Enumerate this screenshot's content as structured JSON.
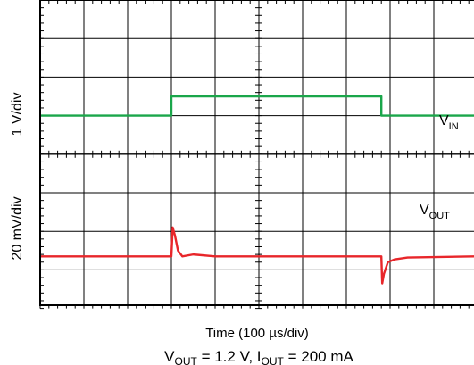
{
  "chart_data": {
    "type": "line",
    "xlabel": "Time (100 µs/div)",
    "caption": {
      "vout_main": "V",
      "vout_sub": "OUT",
      "vout_rest": " = 1.2 V, I",
      "iout_sub": "OUT",
      "iout_rest": " = 200 mA"
    },
    "grid": {
      "cols": 10,
      "rows": 8,
      "minor_per_div": 5
    },
    "panels": [
      {
        "ylabel": "1 V/div",
        "series": [
          {
            "main": "V",
            "sub": "IN",
            "color": "#1aa64a",
            "x": [
              0,
              3,
              3,
              7.8,
              7.8,
              10
            ],
            "y": [
              -0.0,
              -0.0,
              0.5,
              0.5,
              -0.0,
              -0.0
            ]
          }
        ]
      },
      {
        "ylabel": "20 mV/div",
        "series": [
          {
            "main": "V",
            "sub": "OUT",
            "color": "#e8262a",
            "x": [
              0,
              3.0,
              3.03,
              3.08,
              3.15,
              3.25,
              3.5,
              4.0,
              7.8,
              7.82,
              7.86,
              7.95,
              8.1,
              8.4,
              10
            ],
            "y": [
              0,
              0,
              0.75,
              0.55,
              0.15,
              0.0,
              0.05,
              0.0,
              0.0,
              -0.7,
              -0.45,
              -0.15,
              -0.08,
              -0.03,
              0
            ]
          }
        ]
      }
    ]
  }
}
